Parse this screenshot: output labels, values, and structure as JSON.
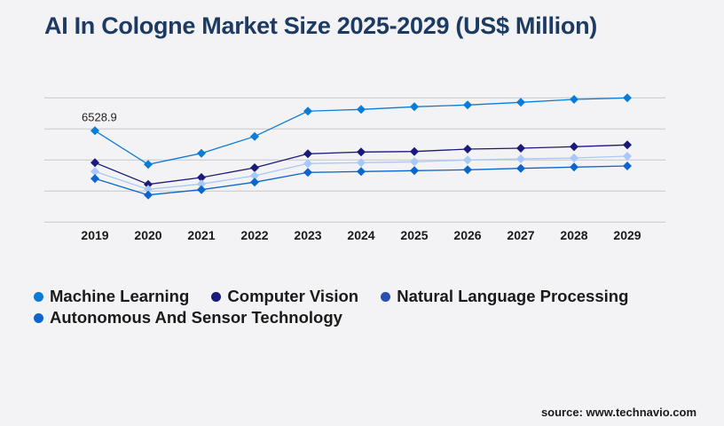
{
  "title": "AI In Cologne Market Size 2025-2029 (US$ Million)",
  "source": "source: www.technavio.com",
  "chart_data": {
    "type": "line",
    "title": "AI In Cologne Market Size 2025-2029 (US$ Million)",
    "xlabel": "",
    "ylabel": "",
    "x": [
      "2019",
      "2020",
      "2021",
      "2022",
      "2023",
      "2024",
      "2025",
      "2026",
      "2027",
      "2028",
      "2029"
    ],
    "ylim": [
      0,
      8874
    ],
    "grid": true,
    "legend_position": "bottom",
    "series": [
      {
        "name": "Machine Learning",
        "color": "#0a7cd6",
        "legend_color": "#0a7cd6",
        "values": [
          6528.9,
          4120,
          4919,
          6123,
          7924,
          8050,
          8240,
          8367,
          8557,
          8767,
          8874
        ]
      },
      {
        "name": "Computer Vision",
        "color": "#1a1a7a",
        "legend_color": "#1a1a7a",
        "values": [
          4247,
          2700,
          3188,
          3886,
          4881,
          5008,
          5046,
          5217,
          5280,
          5388,
          5515
        ]
      },
      {
        "name": "Natural Language Processing",
        "color": "#a8c8f8",
        "legend_color": "#2a4fae",
        "values": [
          3613,
          2345,
          2726,
          3315,
          4184,
          4247,
          4310,
          4437,
          4520,
          4583,
          4710
        ]
      },
      {
        "name": "Autonomous And Sensor Technology",
        "color": "#0a66cc",
        "legend_color": "#0a66cc",
        "values": [
          3106,
          1940,
          2320,
          2852,
          3550,
          3613,
          3677,
          3740,
          3841,
          3930,
          4012
        ]
      }
    ],
    "data_labels": [
      {
        "series": 0,
        "index": 0,
        "text": "6528.9"
      }
    ]
  }
}
